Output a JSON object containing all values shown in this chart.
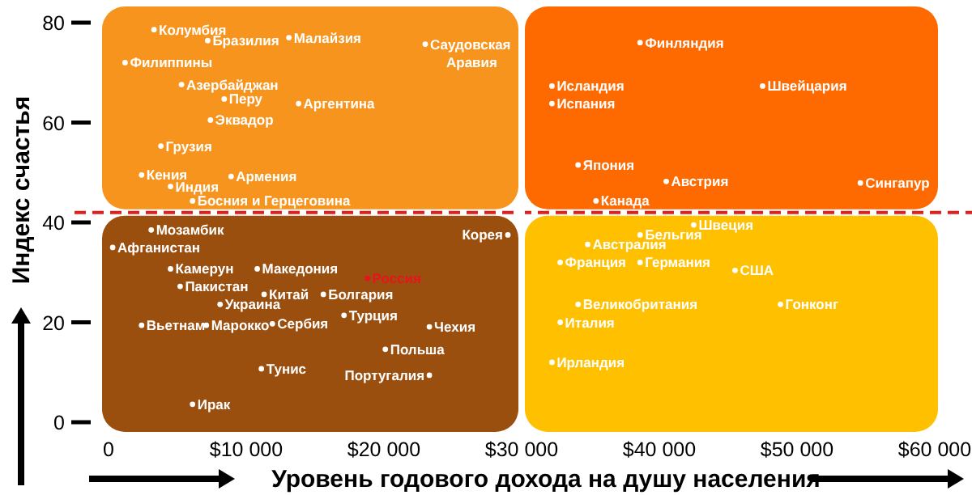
{
  "chart_data": {
    "type": "scatter",
    "xlabel": "Уровень годового дохода на душу населения",
    "ylabel": "Индекс счастья",
    "xlim": [
      0,
      60000
    ],
    "ylim": [
      0,
      80
    ],
    "xticks": [
      0,
      {
        "value": 10000,
        "label": "$10 000"
      },
      {
        "value": 20000,
        "label": "$20 000"
      },
      {
        "value": 30000,
        "label": "$30 000"
      },
      {
        "value": 40000,
        "label": "$40 000"
      },
      {
        "value": 50000,
        "label": "$50 000"
      },
      {
        "value": 60000,
        "label": "$60 000"
      }
    ],
    "yticks": [
      0,
      20,
      40,
      60,
      80
    ],
    "marker": "circle",
    "grid": false,
    "ref_lines": [
      {
        "axis": "y",
        "value": 42,
        "color": "#e0201c",
        "line_style": "dashed"
      },
      {
        "axis": "x",
        "value": 30000,
        "color": "#ffffff",
        "line_style": "solid"
      }
    ],
    "series": [
      {
        "color": "#ffffff",
        "x": [
          3300,
          7200,
          13100,
          23000,
          1200,
          5300,
          8400,
          13800,
          7400,
          3800,
          2400,
          8900,
          4500,
          6100,
          38600,
          32200,
          47500,
          32200,
          34100,
          40500,
          54600,
          35400,
          3100,
          300,
          29000,
          4500,
          10800,
          5200,
          11300,
          15600,
          8100,
          17100,
          2400,
          7100,
          11900,
          23300,
          20100,
          11100,
          23300,
          6100,
          42500,
          38600,
          34800,
          32800,
          38600,
          45500,
          34100,
          48800,
          32800,
          32200
        ],
        "values": [
          78.6,
          76.4,
          77,
          75.7,
          72,
          67.6,
          64.7,
          63.8,
          60.5,
          55.3,
          49.5,
          49.2,
          47.2,
          44.3,
          76,
          67.3,
          67.3,
          63.8,
          51.5,
          48.2,
          47.9,
          44.3,
          38.5,
          35,
          37.5,
          30.7,
          30.7,
          27.2,
          25.6,
          25.6,
          23.6,
          21.4,
          19.4,
          19.4,
          19.7,
          19.1,
          14.6,
          10.7,
          9.4,
          3.6,
          39.5,
          37.5,
          35.6,
          32,
          32,
          30.4,
          23.6,
          23.6,
          20,
          12
        ],
        "type": "scatter"
      },
      {
        "color": "#e8141c",
        "x": [
          18800
        ],
        "values": [
          28.8
        ]
      }
    ],
    "annotations": [
      {
        "text": "Колумбия",
        "x": 3300,
        "y": 78.6
      },
      {
        "text": "Бразилия",
        "x": 7200,
        "y": 76.4
      },
      {
        "text": "Малайзия",
        "x": 13100,
        "y": 77
      },
      {
        "text": "Саудовская Аравия",
        "x": 23000,
        "y": 75.7
      },
      {
        "text": "Филиппины",
        "x": 1200,
        "y": 72
      },
      {
        "text": "Азербайджан",
        "x": 5300,
        "y": 67.6
      },
      {
        "text": "Перу",
        "x": 8400,
        "y": 64.7
      },
      {
        "text": "Аргентина",
        "x": 13800,
        "y": 63.8
      },
      {
        "text": "Эквадор",
        "x": 7400,
        "y": 60.5
      },
      {
        "text": "Грузия",
        "x": 3800,
        "y": 55.3
      },
      {
        "text": "Кения",
        "x": 2400,
        "y": 49.5
      },
      {
        "text": "Армения",
        "x": 8900,
        "y": 49.2
      },
      {
        "text": "Индия",
        "x": 4500,
        "y": 47.2
      },
      {
        "text": "Босния и Герцеговина",
        "x": 6100,
        "y": 44.3
      },
      {
        "text": "Финляндия",
        "x": 38600,
        "y": 76
      },
      {
        "text": "Исландия",
        "x": 32200,
        "y": 67.3
      },
      {
        "text": "Швейцария",
        "x": 47500,
        "y": 67.3
      },
      {
        "text": "Испания",
        "x": 32200,
        "y": 63.8
      },
      {
        "text": "Япония",
        "x": 34100,
        "y": 51.5
      },
      {
        "text": "Австрия",
        "x": 40500,
        "y": 48.2
      },
      {
        "text": "Сингапур",
        "x": 54600,
        "y": 47.9
      },
      {
        "text": "Канада",
        "x": 35400,
        "y": 44.3
      },
      {
        "text": "Мозамбик",
        "x": 3100,
        "y": 38.5
      },
      {
        "text": "Афганистан",
        "x": 300,
        "y": 35
      },
      {
        "text": "Корея",
        "x": 29000,
        "y": 37.5
      },
      {
        "text": "Камерун",
        "x": 4500,
        "y": 30.7
      },
      {
        "text": "Македония",
        "x": 10800,
        "y": 30.7
      },
      {
        "text": "Россия",
        "x": 18800,
        "y": 28.8
      },
      {
        "text": "Пакистан",
        "x": 5200,
        "y": 27.2
      },
      {
        "text": "Китай",
        "x": 11300,
        "y": 25.6
      },
      {
        "text": "Болгария",
        "x": 15600,
        "y": 25.6
      },
      {
        "text": "Украина",
        "x": 8100,
        "y": 23.6
      },
      {
        "text": "Турция",
        "x": 17100,
        "y": 21.4
      },
      {
        "text": "Вьетнам",
        "x": 2400,
        "y": 19.4
      },
      {
        "text": "Марокко",
        "x": 7100,
        "y": 19.4
      },
      {
        "text": "Сербия",
        "x": 11900,
        "y": 19.7
      },
      {
        "text": "Чехия",
        "x": 23300,
        "y": 19.1
      },
      {
        "text": "Польша",
        "x": 20100,
        "y": 14.6
      },
      {
        "text": "Тунис",
        "x": 11100,
        "y": 10.7
      },
      {
        "text": "Португалия",
        "x": 23300,
        "y": 9.4
      },
      {
        "text": "Ирак",
        "x": 6100,
        "y": 3.6
      },
      {
        "text": "Швеция",
        "x": 42500,
        "y": 39.5
      },
      {
        "text": "Бельгия",
        "x": 38600,
        "y": 37.5
      },
      {
        "text": "Австралия",
        "x": 34800,
        "y": 35.6
      },
      {
        "text": "Франция",
        "x": 32800,
        "y": 32
      },
      {
        "text": "Германия",
        "x": 38600,
        "y": 32
      },
      {
        "text": "США",
        "x": 45500,
        "y": 30.4
      },
      {
        "text": "Великобритания",
        "x": 34100,
        "y": 23.6
      },
      {
        "text": "Гонконг",
        "x": 48800,
        "y": 23.6
      },
      {
        "text": "Италия",
        "x": 32800,
        "y": 20
      },
      {
        "text": "Ирландия",
        "x": 32200,
        "y": 12
      }
    ]
  }
}
